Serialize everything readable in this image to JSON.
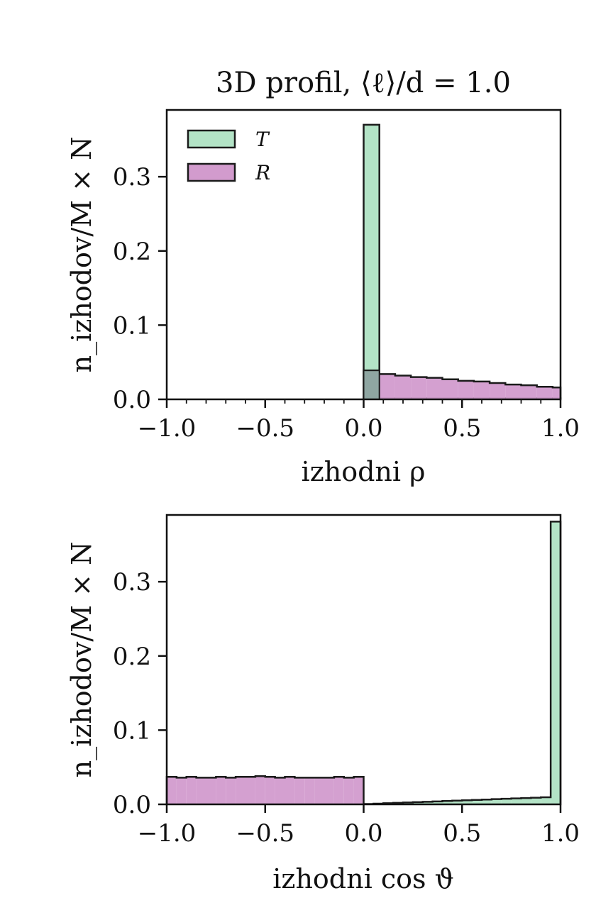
{
  "colors": {
    "T": "#b3e3c6",
    "R": "#d29bcd",
    "edge": "#1b1b1b",
    "overlap": "#8fa6a2"
  },
  "chart_data": [
    {
      "type": "histogram",
      "title": "3D profil, ⟨ℓ⟩/d = 1.0",
      "xlabel": "izhodni ρ",
      "ylabel": "n_izhodov/M × N",
      "xlim": [
        -1.0,
        1.0
      ],
      "ylim": [
        0.0,
        0.39
      ],
      "xticks": [
        "−1.0",
        "−0.5",
        "0.0",
        "0.5",
        "1.0"
      ],
      "yticks": [
        "0.0",
        "0.1",
        "0.2",
        "0.3"
      ],
      "legend": {
        "placement": "top-left",
        "entries": [
          "T",
          "R"
        ]
      },
      "bin_width": 0.08,
      "series": [
        {
          "name": "T",
          "bin_start": 0.0,
          "values": [
            0.37,
            0.0015,
            0.0015,
            0.0015,
            0.0015,
            0.0015,
            0.0015,
            0.0015,
            0.0015,
            0.0015,
            0.0015,
            0.0015,
            0.0015
          ]
        },
        {
          "name": "R",
          "bin_start": 0.0,
          "values": [
            0.039,
            0.034,
            0.032,
            0.03,
            0.029,
            0.027,
            0.025,
            0.024,
            0.022,
            0.02,
            0.019,
            0.017,
            0.016
          ]
        }
      ]
    },
    {
      "type": "histogram",
      "xlabel": "izhodni cos ϑ",
      "ylabel": "n_izhodov/M × N",
      "xlim": [
        -1.0,
        1.0
      ],
      "ylim": [
        0.0,
        0.39
      ],
      "xticks": [
        "−1.0",
        "−0.5",
        "0.0",
        "0.5",
        "1.0"
      ],
      "yticks": [
        "0.0",
        "0.1",
        "0.2",
        "0.3"
      ],
      "series": [
        {
          "name": "T",
          "bin_start": 0.0,
          "bin_width": 0.05,
          "values": [
            0.0005,
            0.001,
            0.0015,
            0.002,
            0.0025,
            0.003,
            0.0035,
            0.004,
            0.0045,
            0.005,
            0.0055,
            0.006,
            0.0065,
            0.007,
            0.0075,
            0.008,
            0.0085,
            0.009,
            0.0095,
            0.381
          ]
        },
        {
          "name": "R",
          "bin_start": -1.0,
          "bin_width": 0.05,
          "values": [
            0.037,
            0.036,
            0.037,
            0.036,
            0.036,
            0.037,
            0.036,
            0.037,
            0.037,
            0.038,
            0.037,
            0.036,
            0.037,
            0.036,
            0.036,
            0.036,
            0.036,
            0.037,
            0.036,
            0.037
          ]
        }
      ]
    }
  ]
}
